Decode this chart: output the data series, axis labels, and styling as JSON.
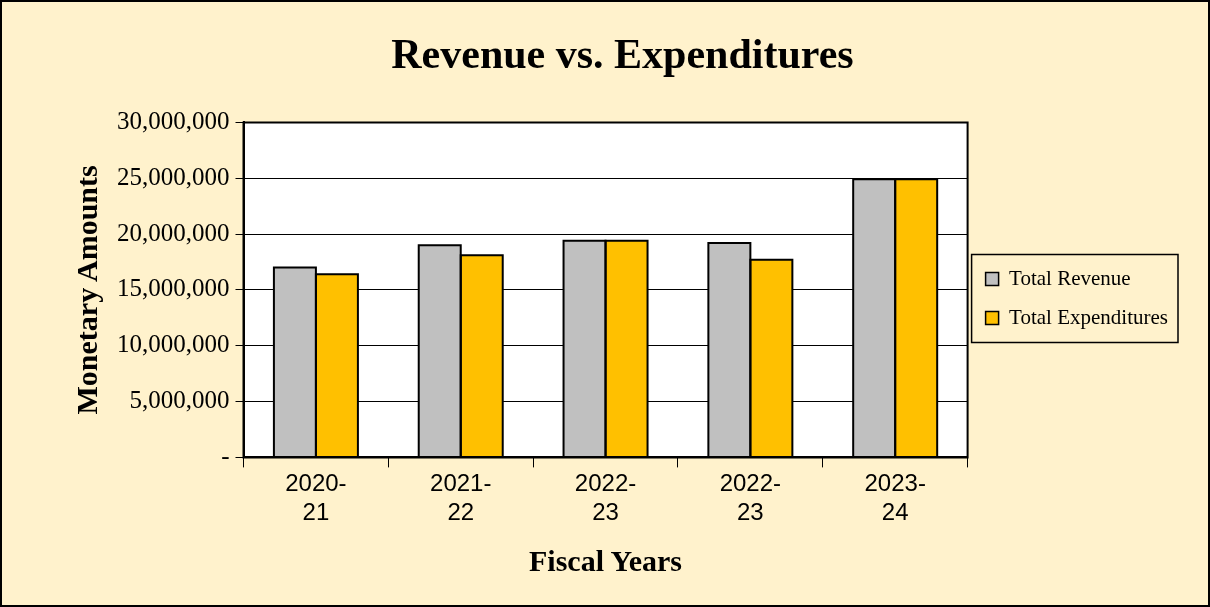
{
  "chart_data": {
    "type": "bar",
    "title": "Revenue vs. Expenditures",
    "xlabel": "Fiscal Years",
    "ylabel": "Monetary Amounts",
    "categories": [
      "2020-21",
      "2021-22",
      "2022-23",
      "2022-23",
      "2023-24"
    ],
    "series": [
      {
        "name": "Total Revenue",
        "color": "#c0c0c0",
        "values": [
          17000000,
          19000000,
          19400000,
          19200000,
          24900000
        ]
      },
      {
        "name": "Total Expenditures",
        "color": "#ffc000",
        "values": [
          16400000,
          18100000,
          19400000,
          17700000,
          24900000
        ]
      }
    ],
    "ylim": [
      0,
      30000000
    ],
    "yticks": [
      {
        "value": 0,
        "label": "-"
      },
      {
        "value": 5000000,
        "label": "5,000,000"
      },
      {
        "value": 10000000,
        "label": "10,000,000"
      },
      {
        "value": 15000000,
        "label": "15,000,000"
      },
      {
        "value": 20000000,
        "label": "20,000,000"
      },
      {
        "value": 25000000,
        "label": "25,000,000"
      },
      {
        "value": 30000000,
        "label": "30,000,000"
      }
    ],
    "grid": "y",
    "legend": "right"
  }
}
